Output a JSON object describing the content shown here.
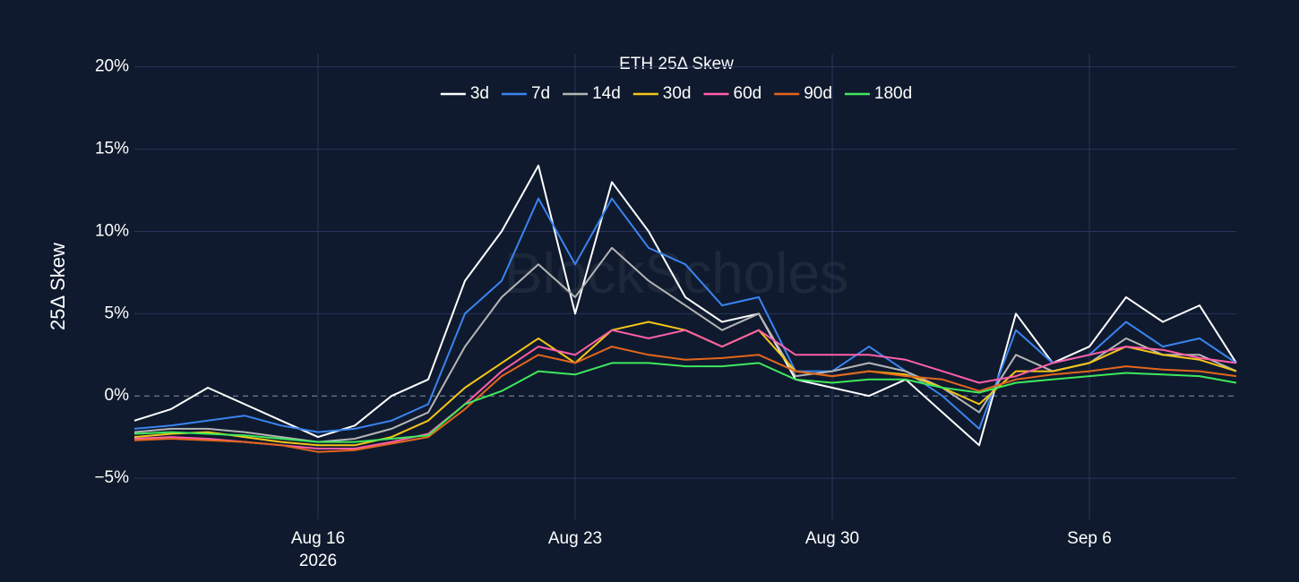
{
  "chart_data": {
    "type": "line",
    "title": "ETH 25Δ Skew",
    "y_label": "25Δ Skew",
    "watermark": "BlockScholes",
    "x": [
      "2026-08-11",
      "2026-08-12",
      "2026-08-13",
      "2026-08-14",
      "2026-08-15",
      "2026-08-16",
      "2026-08-17",
      "2026-08-18",
      "2026-08-19",
      "2026-08-20",
      "2026-08-21",
      "2026-08-22",
      "2026-08-23",
      "2026-08-24",
      "2026-08-25",
      "2026-08-26",
      "2026-08-27",
      "2026-08-28",
      "2026-08-29",
      "2026-08-30",
      "2026-08-31",
      "2026-09-01",
      "2026-09-02",
      "2026-09-03",
      "2026-09-04",
      "2026-09-05",
      "2026-09-06",
      "2026-09-07",
      "2026-09-08",
      "2026-09-09",
      "2026-09-10"
    ],
    "xlim": [
      "2026-08-11",
      "2026-09-10"
    ],
    "xticks": [
      {
        "value": "2026-08-16",
        "label": "Aug 16",
        "sublabel": "2026"
      },
      {
        "value": "2026-08-23",
        "label": "Aug 23"
      },
      {
        "value": "2026-08-30",
        "label": "Aug 30"
      },
      {
        "value": "2026-09-06",
        "label": "Sep 6"
      }
    ],
    "ylim": [
      -7.5,
      20.8
    ],
    "yticks": [
      {
        "value": -5,
        "label": "−5%"
      },
      {
        "value": 0,
        "label": "0%"
      },
      {
        "value": 5,
        "label": "5%"
      },
      {
        "value": 10,
        "label": "10%"
      },
      {
        "value": 15,
        "label": "15%"
      },
      {
        "value": 20,
        "label": "20%"
      }
    ],
    "grid": true,
    "legend": "top",
    "series": [
      {
        "name": "3d",
        "color": "#ffffff",
        "values": [
          -1.5,
          -0.8,
          0.5,
          -0.5,
          -1.5,
          -2.5,
          -1.8,
          0,
          1,
          7,
          10,
          14,
          5,
          13,
          10,
          6,
          4.5,
          5,
          1,
          0.5,
          0,
          1,
          -1,
          -3,
          5,
          2,
          3,
          6,
          4.5,
          5.5,
          2
        ]
      },
      {
        "name": "7d",
        "color": "#3a84f0",
        "values": [
          -2,
          -1.8,
          -1.5,
          -1.2,
          -1.8,
          -2.2,
          -2,
          -1.5,
          -0.5,
          5,
          7,
          12,
          8,
          12,
          9,
          8,
          5.5,
          6,
          1.5,
          1.5,
          3,
          1.5,
          0,
          -2,
          4,
          2,
          2.5,
          4.5,
          3,
          3.5,
          2
        ]
      },
      {
        "name": "14d",
        "color": "#b5b5b5",
        "values": [
          -2.2,
          -2,
          -2,
          -2.2,
          -2.5,
          -2.8,
          -2.6,
          -2,
          -1,
          3,
          6,
          8,
          6,
          9,
          7,
          5.5,
          4,
          5,
          1.2,
          1.5,
          2,
          1.5,
          0.5,
          -1,
          2.5,
          1.5,
          2,
          3.5,
          2.5,
          2.5,
          1.5
        ]
      },
      {
        "name": "30d",
        "color": "#f5c518",
        "values": [
          -2.5,
          -2.3,
          -2.2,
          -2.5,
          -2.8,
          -3,
          -3,
          -2.5,
          -1.5,
          0.5,
          2,
          3.5,
          2,
          4,
          4.5,
          4,
          3,
          4,
          1.5,
          1.2,
          1.5,
          1.3,
          0.5,
          -0.5,
          1.5,
          1.5,
          2,
          3,
          2.5,
          2.2,
          1.5
        ]
      },
      {
        "name": "60d",
        "color": "#ff5fa8",
        "values": [
          -2.6,
          -2.5,
          -2.6,
          -2.8,
          -3,
          -3.2,
          -3.2,
          -2.8,
          -2.3,
          -0.5,
          1.5,
          3,
          2.5,
          4,
          3.5,
          4,
          3,
          4,
          2.5,
          2.5,
          2.5,
          2.2,
          1.5,
          0.8,
          1.2,
          2,
          2.5,
          3,
          2.8,
          2.3,
          2
        ]
      },
      {
        "name": "90d",
        "color": "#e3661c",
        "values": [
          -2.7,
          -2.6,
          -2.7,
          -2.8,
          -3,
          -3.4,
          -3.3,
          -2.9,
          -2.5,
          -0.8,
          1.2,
          2.5,
          2,
          3,
          2.5,
          2.2,
          2.3,
          2.5,
          1.5,
          1.2,
          1.5,
          1.2,
          1,
          0.3,
          1,
          1.3,
          1.5,
          1.8,
          1.6,
          1.5,
          1.2
        ]
      },
      {
        "name": "180d",
        "color": "#3ee85c",
        "values": [
          -2.3,
          -2.2,
          -2.3,
          -2.4,
          -2.6,
          -2.8,
          -2.8,
          -2.6,
          -2.4,
          -0.5,
          0.3,
          1.5,
          1.3,
          2,
          2,
          1.8,
          1.8,
          2,
          1,
          0.8,
          1,
          1,
          0.5,
          0.2,
          0.8,
          1,
          1.2,
          1.4,
          1.3,
          1.2,
          0.8
        ]
      }
    ]
  }
}
